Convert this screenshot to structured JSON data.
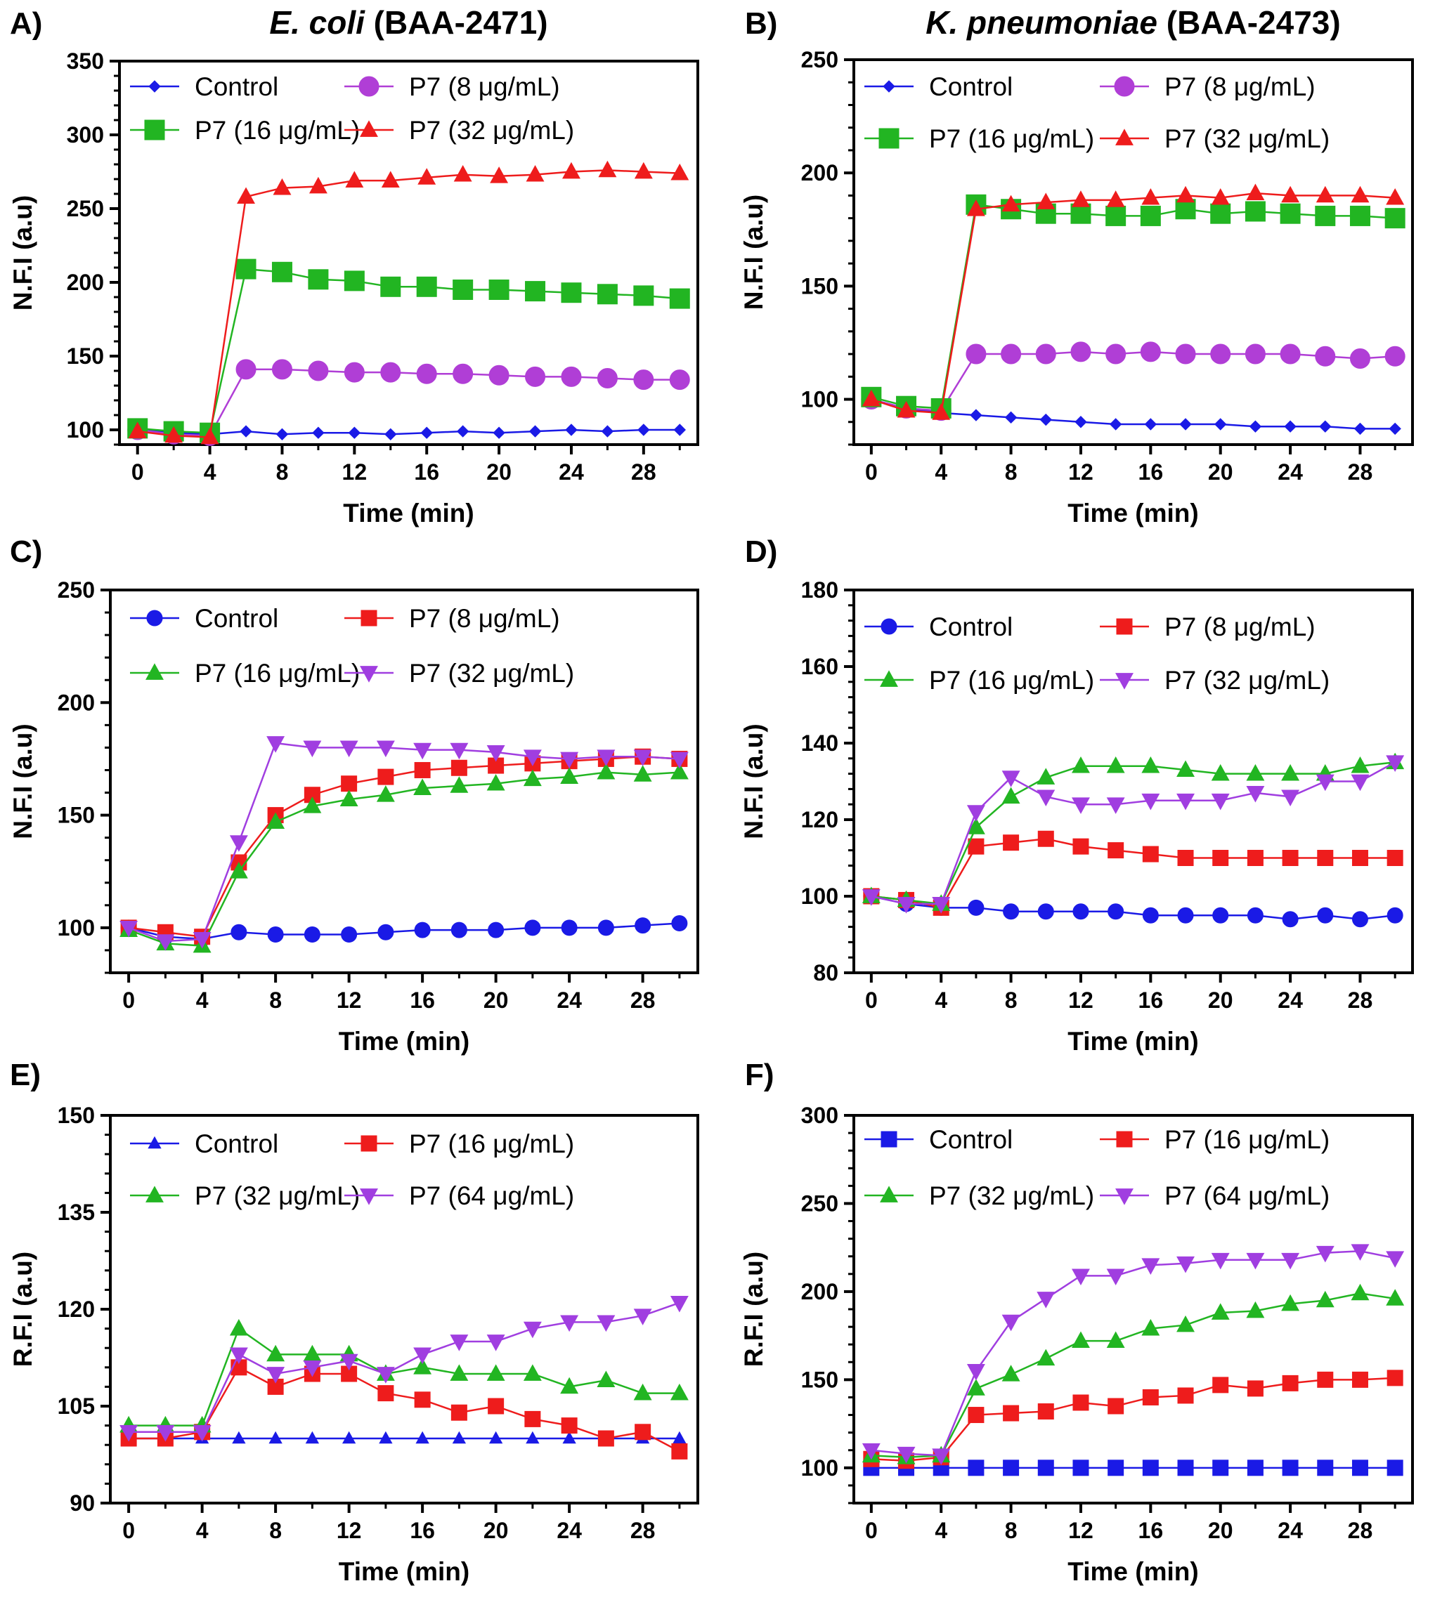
{
  "chart_data": [
    {
      "type": "line",
      "panel": "A)",
      "title_italic": "E. coli",
      "title_rest": " (BAA-2471)",
      "xlabel": "Time (min)",
      "ylabel": "N.F.I (a.u)",
      "xlim": [
        -1,
        31
      ],
      "ylim": [
        90,
        350
      ],
      "xticks": [
        0,
        4,
        8,
        12,
        16,
        20,
        24,
        28
      ],
      "yticks": [
        100,
        150,
        200,
        250,
        300,
        350
      ],
      "x": [
        0,
        2,
        4,
        6,
        8,
        10,
        12,
        14,
        16,
        18,
        20,
        22,
        24,
        26,
        28,
        30
      ],
      "series": [
        {
          "name": "Control",
          "color": "#1a1ae6",
          "marker": "diamond",
          "size": "small",
          "values": [
            100,
            98,
            97,
            99,
            97,
            98,
            98,
            97,
            98,
            99,
            98,
            99,
            100,
            99,
            100,
            100
          ]
        },
        {
          "name": "P7 (8 μg/mL)",
          "color": "#b03ed6",
          "marker": "circle",
          "size": "large",
          "values": [
            100,
            97,
            96,
            141,
            141,
            140,
            139,
            139,
            138,
            138,
            137,
            136,
            136,
            135,
            134,
            134
          ]
        },
        {
          "name": "P7 (16 μg/mL)",
          "color": "#22b522",
          "marker": "square",
          "size": "large",
          "values": [
            101,
            99,
            98,
            209,
            207,
            202,
            201,
            197,
            197,
            195,
            195,
            194,
            193,
            192,
            191,
            189
          ]
        },
        {
          "name": "P7 (32 μg/mL)",
          "color": "#ee1c1c",
          "marker": "triangle-up",
          "size": "medium",
          "values": [
            99,
            96,
            95,
            258,
            264,
            265,
            269,
            269,
            271,
            273,
            272,
            273,
            275,
            276,
            275,
            274
          ]
        }
      ]
    },
    {
      "type": "line",
      "panel": "B)",
      "title_italic": "K. pneumoniae",
      "title_rest": " (BAA-2473)",
      "xlabel": "Time (min)",
      "ylabel": "N.F.I (a.u)",
      "xlim": [
        -1,
        31
      ],
      "ylim": [
        80,
        250
      ],
      "xticks": [
        0,
        4,
        8,
        12,
        16,
        20,
        24,
        28
      ],
      "yticks": [
        100,
        150,
        200,
        250
      ],
      "x": [
        0,
        2,
        4,
        6,
        8,
        10,
        12,
        14,
        16,
        18,
        20,
        22,
        24,
        26,
        28,
        30
      ],
      "series": [
        {
          "name": "Control",
          "color": "#1a1ae6",
          "marker": "diamond",
          "size": "small",
          "values": [
            100,
            96,
            94,
            93,
            92,
            91,
            90,
            89,
            89,
            89,
            89,
            88,
            88,
            88,
            87,
            87
          ]
        },
        {
          "name": "P7 (8 μg/mL)",
          "color": "#b03ed6",
          "marker": "circle",
          "size": "large",
          "values": [
            100,
            96,
            95,
            120,
            120,
            120,
            121,
            120,
            121,
            120,
            120,
            120,
            120,
            119,
            118,
            119
          ]
        },
        {
          "name": "P7 (16 μg/mL)",
          "color": "#22b522",
          "marker": "square",
          "size": "large",
          "values": [
            101,
            97,
            96,
            186,
            184,
            182,
            182,
            181,
            181,
            184,
            182,
            183,
            182,
            181,
            181,
            180
          ]
        },
        {
          "name": "P7 (32 μg/mL)",
          "color": "#ee1c1c",
          "marker": "triangle-up",
          "size": "medium",
          "values": [
            100,
            95,
            94,
            184,
            186,
            187,
            188,
            188,
            189,
            190,
            189,
            191,
            190,
            190,
            190,
            189
          ]
        }
      ]
    },
    {
      "type": "line",
      "panel": "C)",
      "title_italic": "",
      "title_rest": "",
      "xlabel": "Time (min)",
      "ylabel": "N.F.I (a.u)",
      "xlim": [
        -1,
        31
      ],
      "ylim": [
        80,
        250
      ],
      "xticks": [
        0,
        4,
        8,
        12,
        16,
        20,
        24,
        28
      ],
      "yticks": [
        100,
        150,
        200,
        250
      ],
      "x": [
        0,
        2,
        4,
        6,
        8,
        10,
        12,
        14,
        16,
        18,
        20,
        22,
        24,
        26,
        28,
        30
      ],
      "series": [
        {
          "name": "Control",
          "color": "#1a1ae6",
          "marker": "circle",
          "size": "medium",
          "values": [
            100,
            96,
            95,
            98,
            97,
            97,
            97,
            98,
            99,
            99,
            99,
            100,
            100,
            100,
            101,
            102
          ]
        },
        {
          "name": "P7 (8 μg/mL)",
          "color": "#ee1c1c",
          "marker": "square",
          "size": "medium",
          "values": [
            100,
            98,
            96,
            129,
            150,
            159,
            164,
            167,
            170,
            171,
            172,
            173,
            174,
            175,
            176,
            175
          ]
        },
        {
          "name": "P7 (16 μg/mL)",
          "color": "#22b522",
          "marker": "triangle-up",
          "size": "medium",
          "values": [
            99,
            93,
            92,
            125,
            147,
            154,
            157,
            159,
            162,
            163,
            164,
            166,
            167,
            169,
            168,
            169
          ]
        },
        {
          "name": "P7 (32 μg/mL)",
          "color": "#a03ee0",
          "marker": "triangle-down",
          "size": "medium",
          "values": [
            100,
            94,
            95,
            138,
            182,
            180,
            180,
            180,
            179,
            179,
            178,
            176,
            175,
            176,
            176,
            175
          ]
        }
      ]
    },
    {
      "type": "line",
      "panel": "D)",
      "title_italic": "",
      "title_rest": "",
      "xlabel": "Time (min)",
      "ylabel": "N.F.I (a.u)",
      "xlim": [
        -1,
        31
      ],
      "ylim": [
        80,
        180
      ],
      "xticks": [
        0,
        4,
        8,
        12,
        16,
        20,
        24,
        28
      ],
      "yticks": [
        80,
        100,
        120,
        140,
        160,
        180
      ],
      "x": [
        0,
        2,
        4,
        6,
        8,
        10,
        12,
        14,
        16,
        18,
        20,
        22,
        24,
        26,
        28,
        30
      ],
      "series": [
        {
          "name": "Control",
          "color": "#1a1ae6",
          "marker": "circle",
          "size": "medium",
          "values": [
            100,
            98,
            97,
            97,
            96,
            96,
            96,
            96,
            95,
            95,
            95,
            95,
            94,
            95,
            94,
            95
          ]
        },
        {
          "name": "P7 (8 μg/mL)",
          "color": "#ee1c1c",
          "marker": "square",
          "size": "medium",
          "values": [
            100,
            99,
            97,
            113,
            114,
            115,
            113,
            112,
            111,
            110,
            110,
            110,
            110,
            110,
            110,
            110
          ]
        },
        {
          "name": "P7 (16 μg/mL)",
          "color": "#22b522",
          "marker": "triangle-up",
          "size": "medium",
          "values": [
            100,
            99,
            98,
            118,
            126,
            131,
            134,
            134,
            134,
            133,
            132,
            132,
            132,
            132,
            134,
            135
          ]
        },
        {
          "name": "P7 (32 μg/mL)",
          "color": "#a03ee0",
          "marker": "triangle-down",
          "size": "medium",
          "values": [
            100,
            98,
            98,
            122,
            131,
            126,
            124,
            124,
            125,
            125,
            125,
            127,
            126,
            130,
            130,
            135
          ]
        }
      ]
    },
    {
      "type": "line",
      "panel": "E)",
      "title_italic": "",
      "title_rest": "",
      "xlabel": "Time (min)",
      "ylabel": "R.F.I (a.u)",
      "xlim": [
        -1,
        31
      ],
      "ylim": [
        90,
        150
      ],
      "xticks": [
        0,
        4,
        8,
        12,
        16,
        20,
        24,
        28
      ],
      "yticks": [
        90,
        105,
        120,
        135,
        150
      ],
      "x": [
        0,
        2,
        4,
        6,
        8,
        10,
        12,
        14,
        16,
        18,
        20,
        22,
        24,
        26,
        28,
        30
      ],
      "series": [
        {
          "name": "Control",
          "color": "#1a1ae6",
          "marker": "triangle-up",
          "size": "small",
          "values": [
            100,
            100,
            100,
            100,
            100,
            100,
            100,
            100,
            100,
            100,
            100,
            100,
            100,
            100,
            100,
            100
          ]
        },
        {
          "name": "P7 (16 μg/mL)",
          "color": "#ee1c1c",
          "marker": "square",
          "size": "medium",
          "values": [
            100,
            100,
            101,
            111,
            108,
            110,
            110,
            107,
            106,
            104,
            105,
            103,
            102,
            100,
            101,
            98
          ]
        },
        {
          "name": "P7 (32 μg/mL)",
          "color": "#22b522",
          "marker": "triangle-up",
          "size": "medium",
          "values": [
            102,
            102,
            102,
            117,
            113,
            113,
            113,
            110,
            111,
            110,
            110,
            110,
            108,
            109,
            107,
            107
          ]
        },
        {
          "name": "P7 (64 μg/mL)",
          "color": "#a03ee0",
          "marker": "triangle-down",
          "size": "medium",
          "values": [
            101,
            101,
            101,
            113,
            110,
            111,
            112,
            110,
            113,
            115,
            115,
            117,
            118,
            118,
            119,
            121
          ]
        }
      ]
    },
    {
      "type": "line",
      "panel": "F)",
      "title_italic": "",
      "title_rest": "",
      "xlabel": "Time (min)",
      "ylabel": "R.F.I (a.u)",
      "xlim": [
        -1,
        31
      ],
      "ylim": [
        80,
        300
      ],
      "xticks": [
        0,
        4,
        8,
        12,
        16,
        20,
        24,
        28
      ],
      "yticks": [
        100,
        150,
        200,
        250,
        300
      ],
      "x": [
        0,
        2,
        4,
        6,
        8,
        10,
        12,
        14,
        16,
        18,
        20,
        22,
        24,
        26,
        28,
        30
      ],
      "series": [
        {
          "name": "Control",
          "color": "#1a1ae6",
          "marker": "square",
          "size": "medium",
          "values": [
            100,
            100,
            100,
            100,
            100,
            100,
            100,
            100,
            100,
            100,
            100,
            100,
            100,
            100,
            100,
            100
          ]
        },
        {
          "name": "P7 (16 μg/mL)",
          "color": "#ee1c1c",
          "marker": "square",
          "size": "medium",
          "values": [
            105,
            104,
            106,
            130,
            131,
            132,
            137,
            135,
            140,
            141,
            147,
            145,
            148,
            150,
            150,
            151
          ]
        },
        {
          "name": "P7 (32 μg/mL)",
          "color": "#22b522",
          "marker": "triangle-up",
          "size": "medium",
          "values": [
            107,
            106,
            107,
            145,
            153,
            162,
            172,
            172,
            179,
            181,
            188,
            189,
            193,
            195,
            199,
            196
          ]
        },
        {
          "name": "P7 (64 μg/mL)",
          "color": "#a03ee0",
          "marker": "triangle-down",
          "size": "medium",
          "values": [
            110,
            108,
            107,
            155,
            183,
            196,
            209,
            209,
            215,
            216,
            218,
            218,
            218,
            222,
            223,
            219
          ]
        }
      ]
    }
  ]
}
